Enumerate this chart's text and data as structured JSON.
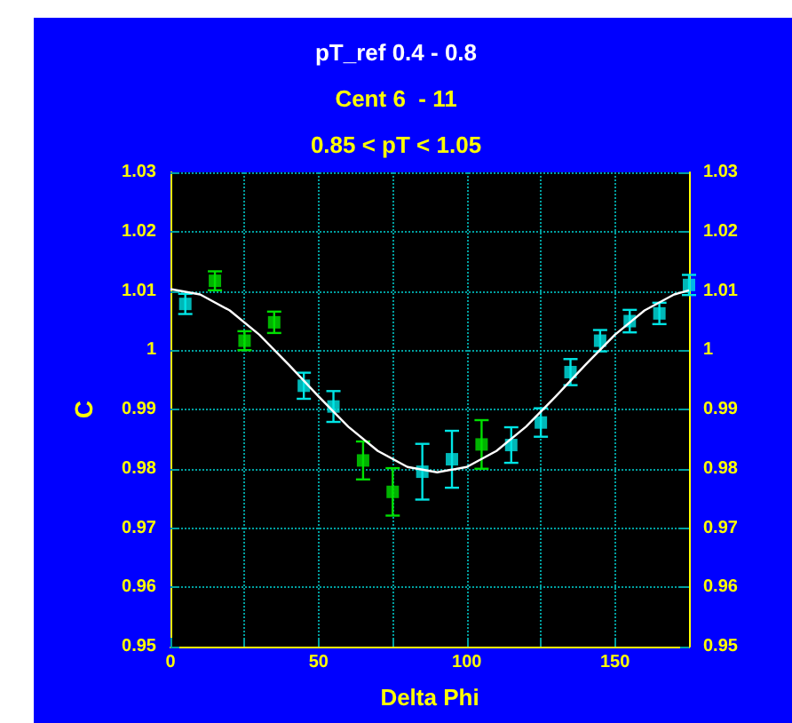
{
  "chart_data": {
    "type": "scatter",
    "title": "pT_ref 0.4 - 0.8",
    "subtitle": "Cent 6  - 11",
    "annotations": [
      "0.85 < pT < 1.05"
    ],
    "xlabel": "Delta Phi",
    "ylabel": "C",
    "xlim": [
      0,
      175
    ],
    "xticks": [
      0,
      {
        "value": 25,
        "label": null
      },
      50,
      {
        "value": 75,
        "label": null
      },
      100,
      {
        "value": 125,
        "label": null
      },
      150
    ],
    "ylim": [
      0.95,
      1.03
    ],
    "yticks": [
      0.95,
      0.96,
      0.97,
      0.98,
      0.99,
      1,
      1.01,
      1.02,
      1.03
    ],
    "y2lim": [
      0.95,
      1.03
    ],
    "y2ticks": [
      0.95,
      0.96,
      0.97,
      0.98,
      0.99,
      1,
      1.01,
      1.02,
      1.03
    ],
    "grid": true,
    "marker": "square",
    "series": [
      {
        "color": "#00e5e5",
        "x": [
          5,
          45,
          55,
          85,
          95,
          115,
          125,
          135,
          145,
          155,
          165,
          175
        ],
        "values": [
          1.0078,
          0.994,
          0.9905,
          0.9795,
          0.9816,
          0.984,
          0.9878,
          0.9963,
          1.0016,
          1.0049,
          1.0062,
          1.011
        ],
        "errors": [
          0.0017,
          0.0022,
          0.0026,
          0.0047,
          0.0048,
          0.003,
          0.0024,
          0.0022,
          0.0018,
          0.0019,
          0.0018,
          0.0017
        ]
      },
      {
        "color": "#00e000",
        "x": [
          15,
          25,
          35,
          65,
          75,
          105
        ],
        "values": [
          1.0117,
          1.0016,
          1.0047,
          0.9814,
          0.9761,
          0.9841
        ],
        "errors": [
          0.0016,
          0.0016,
          0.0018,
          0.0032,
          0.004,
          0.0041
        ]
      },
      {
        "type": "line",
        "color": "#ffffff",
        "marker": "none",
        "line_style": "solid",
        "x": [
          0,
          10,
          20,
          30,
          40,
          50,
          60,
          70,
          80,
          90,
          100,
          110,
          120,
          130,
          140,
          150,
          160,
          170,
          175
        ],
        "values": [
          1.0103,
          1.0094,
          1.0067,
          1.0026,
          0.9975,
          0.9922,
          0.9871,
          0.983,
          0.9803,
          0.9794,
          0.9803,
          0.983,
          0.9871,
          0.9922,
          0.9975,
          1.0026,
          1.0067,
          1.0094,
          1.0101
        ]
      }
    ]
  }
}
